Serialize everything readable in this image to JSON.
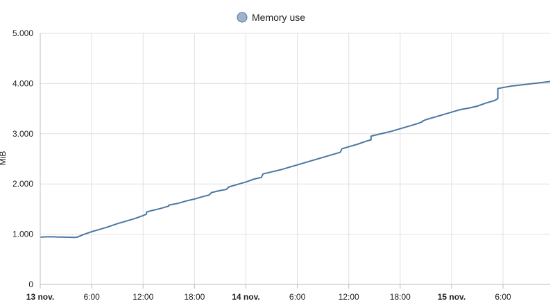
{
  "chart_data": {
    "type": "line",
    "title": "",
    "legend": {
      "position": "top-center",
      "entries": [
        "Memory use"
      ]
    },
    "ylabel": "MiB",
    "xlabel": "",
    "ylim": [
      0,
      5000
    ],
    "y_ticks": [
      0,
      1000,
      2000,
      3000,
      4000,
      5000
    ],
    "y_tick_labels": [
      "0",
      "1.000",
      "2.000",
      "3.000",
      "4.000",
      "5.000"
    ],
    "x_unit": "hours",
    "xlim": [
      0,
      59.5
    ],
    "x_ticks": [
      0,
      6,
      12,
      18,
      24,
      30,
      36,
      42,
      48,
      54
    ],
    "x_tick_labels": [
      "13 nov.",
      "6:00",
      "12:00",
      "18:00",
      "14 nov.",
      "6:00",
      "12:00",
      "18:00",
      "15 nov.",
      "6:00"
    ],
    "x_major_ticks": [
      "13 nov.",
      "14 nov.",
      "15 nov."
    ],
    "grid": true,
    "series": [
      {
        "name": "Memory use",
        "color": "#4b77a1",
        "x": [
          0,
          1,
          2,
          3,
          4,
          4.3,
          5,
          6,
          7,
          8,
          9,
          10,
          11,
          12,
          12.4,
          12.4,
          13,
          14,
          15,
          15,
          16,
          17,
          18,
          19,
          19.7,
          20,
          21,
          21.7,
          22,
          23,
          24,
          25,
          25.8,
          26,
          27,
          28,
          29,
          30,
          31,
          32,
          33,
          34,
          35,
          35.2,
          36,
          37,
          38,
          38.6,
          38.6,
          39,
          40,
          41,
          42,
          43,
          44,
          44.6,
          44.6,
          45,
          46,
          47,
          48,
          49,
          50,
          51,
          52,
          53,
          53.4,
          53.4,
          54,
          55,
          56,
          57,
          58,
          59.5
        ],
        "y": [
          940,
          950,
          945,
          940,
          935,
          940,
          990,
          1050,
          1100,
          1150,
          1210,
          1260,
          1310,
          1370,
          1400,
          1440,
          1470,
          1510,
          1560,
          1580,
          1610,
          1660,
          1700,
          1750,
          1780,
          1830,
          1870,
          1890,
          1940,
          1990,
          2040,
          2100,
          2130,
          2200,
          2240,
          2280,
          2330,
          2380,
          2430,
          2480,
          2530,
          2580,
          2630,
          2700,
          2740,
          2790,
          2850,
          2880,
          2950,
          2970,
          3010,
          3050,
          3100,
          3150,
          3200,
          3240,
          3250,
          3280,
          3330,
          3380,
          3430,
          3480,
          3510,
          3550,
          3610,
          3660,
          3700,
          3900,
          3920,
          3950,
          3970,
          3990,
          4010,
          4040
        ]
      }
    ]
  }
}
